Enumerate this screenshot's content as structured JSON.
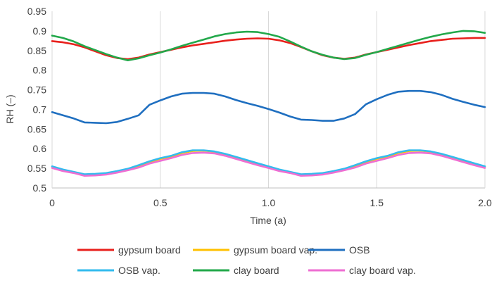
{
  "chart_data": {
    "type": "line",
    "title": "",
    "xlabel": "Time (a)",
    "ylabel": "RH (–)",
    "xlim": [
      0,
      2.0
    ],
    "ylim": [
      0.5,
      0.95
    ],
    "x_ticks": [
      "0",
      "0.5",
      "1.0",
      "1.5",
      "2.0"
    ],
    "x_tick_values": [
      0,
      0.5,
      1.0,
      1.5,
      2.0
    ],
    "y_ticks": [
      "0.5",
      "0.55",
      "0.6",
      "0.65",
      "0.7",
      "0.75",
      "0.8",
      "0.85",
      "0.9",
      "0.95"
    ],
    "y_tick_values": [
      0.5,
      0.55,
      0.6,
      0.65,
      0.7,
      0.75,
      0.8,
      0.85,
      0.9,
      0.95
    ],
    "grid": "vertical",
    "legend_position": "bottom",
    "x": [
      0,
      0.05,
      0.1,
      0.15,
      0.2,
      0.25,
      0.3,
      0.35,
      0.4,
      0.45,
      0.5,
      0.55,
      0.6,
      0.65,
      0.7,
      0.75,
      0.8,
      0.85,
      0.9,
      0.95,
      1.0,
      1.05,
      1.1,
      1.15,
      1.2,
      1.25,
      1.3,
      1.35,
      1.4,
      1.45,
      1.5,
      1.55,
      1.6,
      1.65,
      1.7,
      1.75,
      1.8,
      1.85,
      1.9,
      1.95,
      2.0
    ],
    "series": [
      {
        "name": "gypsum board",
        "color": "#e8201c",
        "values": [
          0.874,
          0.871,
          0.866,
          0.858,
          0.848,
          0.838,
          0.831,
          0.828,
          0.832,
          0.84,
          0.846,
          0.852,
          0.858,
          0.863,
          0.867,
          0.871,
          0.875,
          0.878,
          0.88,
          0.881,
          0.88,
          0.876,
          0.869,
          0.859,
          0.848,
          0.838,
          0.832,
          0.829,
          0.832,
          0.84,
          0.846,
          0.852,
          0.858,
          0.864,
          0.869,
          0.874,
          0.877,
          0.88,
          0.881,
          0.882,
          0.882
        ]
      },
      {
        "name": "gypsum board vap.",
        "color": "#ffc000",
        "values": [
          0.554,
          0.546,
          0.54,
          0.534,
          0.535,
          0.537,
          0.542,
          0.548,
          0.556,
          0.566,
          0.574,
          0.58,
          0.589,
          0.594,
          0.595,
          0.592,
          0.586,
          0.578,
          0.57,
          0.562,
          0.554,
          0.546,
          0.54,
          0.534,
          0.535,
          0.537,
          0.542,
          0.548,
          0.556,
          0.566,
          0.574,
          0.58,
          0.589,
          0.594,
          0.595,
          0.592,
          0.586,
          0.578,
          0.57,
          0.562,
          0.554
        ]
      },
      {
        "name": "OSB",
        "color": "#1f6fc0",
        "values": [
          0.693,
          0.685,
          0.677,
          0.667,
          0.666,
          0.665,
          0.668,
          0.676,
          0.685,
          0.712,
          0.723,
          0.733,
          0.74,
          0.742,
          0.742,
          0.74,
          0.733,
          0.724,
          0.716,
          0.709,
          0.701,
          0.692,
          0.682,
          0.674,
          0.673,
          0.671,
          0.671,
          0.677,
          0.688,
          0.713,
          0.726,
          0.737,
          0.745,
          0.747,
          0.747,
          0.744,
          0.737,
          0.727,
          0.719,
          0.712,
          0.706
        ]
      },
      {
        "name": "OSB vap.",
        "color": "#33bbee",
        "values": [
          0.555,
          0.547,
          0.541,
          0.535,
          0.536,
          0.538,
          0.543,
          0.549,
          0.558,
          0.568,
          0.576,
          0.582,
          0.591,
          0.596,
          0.596,
          0.593,
          0.587,
          0.579,
          0.571,
          0.563,
          0.555,
          0.547,
          0.541,
          0.535,
          0.536,
          0.538,
          0.543,
          0.549,
          0.558,
          0.568,
          0.576,
          0.582,
          0.591,
          0.596,
          0.596,
          0.593,
          0.587,
          0.579,
          0.571,
          0.563,
          0.555
        ]
      },
      {
        "name": "clay board",
        "color": "#22a84a",
        "values": [
          0.888,
          0.882,
          0.873,
          0.861,
          0.851,
          0.841,
          0.832,
          0.825,
          0.83,
          0.838,
          0.845,
          0.853,
          0.862,
          0.87,
          0.878,
          0.886,
          0.892,
          0.896,
          0.898,
          0.897,
          0.892,
          0.885,
          0.873,
          0.86,
          0.848,
          0.839,
          0.832,
          0.828,
          0.831,
          0.839,
          0.846,
          0.854,
          0.862,
          0.87,
          0.878,
          0.885,
          0.891,
          0.896,
          0.9,
          0.899,
          0.895
        ]
      },
      {
        "name": "clay board vap.",
        "color": "#ee6ed2",
        "values": [
          0.551,
          0.543,
          0.538,
          0.531,
          0.532,
          0.534,
          0.539,
          0.545,
          0.552,
          0.562,
          0.569,
          0.576,
          0.584,
          0.589,
          0.59,
          0.588,
          0.582,
          0.574,
          0.566,
          0.558,
          0.551,
          0.543,
          0.538,
          0.531,
          0.532,
          0.534,
          0.539,
          0.545,
          0.552,
          0.562,
          0.569,
          0.576,
          0.584,
          0.589,
          0.59,
          0.588,
          0.582,
          0.574,
          0.566,
          0.558,
          0.551
        ]
      }
    ]
  }
}
